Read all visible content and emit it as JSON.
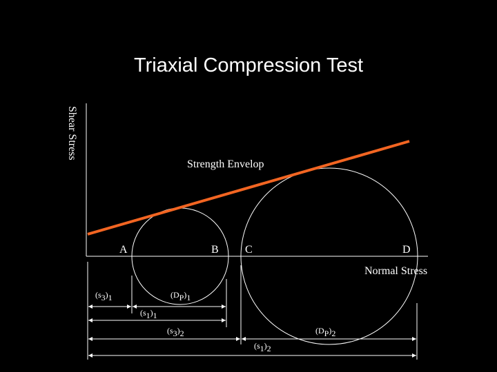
{
  "title": "Triaxial Compression Test",
  "y_axis_label": "Shear Stress",
  "x_axis_label": "Normal Stress",
  "envelope_label": "Strength Envelop",
  "points": [
    "A",
    "B",
    "C",
    "D"
  ],
  "dimensions": [
    {
      "parts": [
        "(s",
        "3",
        ")",
        "1"
      ]
    },
    {
      "parts": [
        "(D",
        "P",
        ")",
        "1"
      ]
    },
    {
      "parts": [
        "(s",
        "1",
        ")",
        "1"
      ]
    },
    {
      "parts": [
        "(s",
        "3",
        ")",
        "2"
      ]
    },
    {
      "parts": [
        "(D",
        "P",
        ")",
        "2"
      ]
    },
    {
      "parts": [
        "(s",
        "1",
        ")",
        "2"
      ]
    }
  ]
}
